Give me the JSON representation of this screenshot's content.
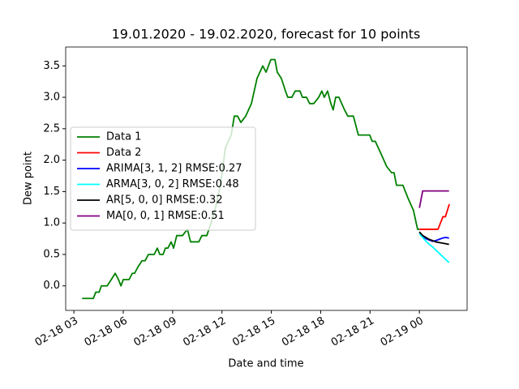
{
  "chart_data": {
    "type": "line",
    "title": "19.01.2020 - 19.02.2020, forecast for 10 points",
    "x_label": "Date and time",
    "y_label": "Dew point",
    "xlim": [
      2.5,
      26.9
    ],
    "ylim": [
      -0.39,
      3.8
    ],
    "xticks": [
      {
        "value": 3,
        "label": "02-18 03"
      },
      {
        "value": 6,
        "label": "02-18 06"
      },
      {
        "value": 9,
        "label": "02-18 09"
      },
      {
        "value": 12,
        "label": "02-18 12"
      },
      {
        "value": 15,
        "label": "02-18 15"
      },
      {
        "value": 18,
        "label": "02-18 18"
      },
      {
        "value": 21,
        "label": "02-18 21"
      },
      {
        "value": 24,
        "label": "02-19 00"
      }
    ],
    "yticks": [
      {
        "value": 0,
        "label": "0.0"
      },
      0.5,
      {
        "value": 1,
        "label": "1.0"
      },
      1.5,
      {
        "value": 2,
        "label": "2.0"
      },
      2.5,
      {
        "value": 3,
        "label": "3.0"
      },
      3.5
    ],
    "legend": "center left",
    "grid": false,
    "series": [
      {
        "name": "Data 1",
        "color": "#008000",
        "x": [
          3.5,
          3.84,
          4.18,
          4.33,
          4.53,
          4.67,
          5.02,
          5.27,
          5.51,
          5.71,
          5.86,
          6.0,
          6.35,
          6.55,
          6.69,
          6.89,
          7.14,
          7.33,
          7.53,
          7.88,
          8.07,
          8.22,
          8.42,
          8.56,
          8.71,
          8.91,
          9.06,
          9.25,
          9.6,
          9.9,
          10.09,
          10.59,
          10.78,
          11.08,
          11.33,
          11.57,
          11.82,
          12.01,
          12.21,
          12.56,
          12.75,
          12.95,
          13.15,
          13.44,
          13.79,
          14.13,
          14.48,
          14.68,
          14.97,
          15.22,
          15.36,
          15.61,
          15.86,
          16.0,
          16.25,
          16.45,
          16.74,
          16.89,
          17.14,
          17.33,
          17.58,
          17.88,
          18.07,
          18.22,
          18.42,
          18.62,
          18.76,
          18.91,
          19.11,
          19.45,
          19.65,
          19.99,
          20.29,
          20.98,
          21.13,
          21.32,
          21.67,
          22.01,
          22.31,
          22.46,
          22.61,
          23.0,
          23.3,
          23.64,
          23.89,
          24.0
        ],
        "values": [
          -0.2,
          -0.2,
          -0.2,
          -0.1,
          -0.1,
          0.0,
          0.0,
          0.1,
          0.2,
          0.1,
          0.0,
          0.1,
          0.1,
          0.2,
          0.2,
          0.3,
          0.4,
          0.4,
          0.5,
          0.5,
          0.6,
          0.5,
          0.5,
          0.6,
          0.6,
          0.7,
          0.6,
          0.8,
          0.8,
          0.9,
          0.7,
          0.7,
          0.8,
          0.8,
          1.0,
          1.2,
          1.5,
          1.8,
          2.2,
          2.4,
          2.7,
          2.7,
          2.6,
          2.7,
          2.9,
          3.3,
          3.5,
          3.4,
          3.6,
          3.6,
          3.4,
          3.3,
          3.1,
          3.0,
          3.0,
          3.1,
          3.1,
          3.0,
          3.0,
          2.9,
          2.9,
          3.0,
          3.1,
          3.0,
          3.1,
          2.9,
          2.8,
          3.0,
          3.0,
          2.8,
          2.7,
          2.7,
          2.4,
          2.4,
          2.3,
          2.3,
          2.1,
          1.9,
          1.8,
          1.8,
          1.6,
          1.6,
          1.4,
          1.2,
          0.9,
          0.9
        ]
      },
      {
        "name": "Data 2",
        "color": "#ff0000",
        "x": [
          24.0,
          25.13,
          25.43,
          25.58,
          25.82
        ],
        "values": [
          0.9,
          0.9,
          1.1,
          1.1,
          1.3
        ]
      },
      {
        "name": "ARIMA[3, 1, 2] RMSE:0.27",
        "color": "#0000ff",
        "x": [
          24.0,
          24.2,
          24.4,
          24.6,
          24.8,
          25.0,
          25.2,
          25.4,
          25.6,
          25.8
        ],
        "values": [
          0.85,
          0.8,
          0.75,
          0.73,
          0.71,
          0.72,
          0.74,
          0.76,
          0.77,
          0.76
        ]
      },
      {
        "name": "ARMA[3, 0, 2] RMSE:0.48",
        "color": "#00ffff",
        "x": [
          24.0,
          24.2,
          24.4,
          24.6,
          24.8,
          25.0,
          25.2,
          25.4,
          25.6,
          25.8
        ],
        "values": [
          0.83,
          0.77,
          0.71,
          0.66,
          0.62,
          0.57,
          0.52,
          0.47,
          0.42,
          0.37
        ]
      },
      {
        "name": "AR[5, 0, 0] RMSE:0.32",
        "color": "#000000",
        "x": [
          24.0,
          24.2,
          24.4,
          24.6,
          24.8,
          25.0,
          25.2,
          25.4,
          25.6,
          25.8
        ],
        "values": [
          0.86,
          0.8,
          0.77,
          0.74,
          0.72,
          0.7,
          0.69,
          0.68,
          0.67,
          0.66
        ]
      },
      {
        "name": "MA[0, 0, 1] RMSE:0.51",
        "color": "#800080",
        "x": [
          24.0,
          24.2,
          24.4,
          24.6,
          24.8,
          25.0,
          25.2,
          25.4,
          25.6,
          25.8
        ],
        "values": [
          1.24,
          1.51,
          1.51,
          1.51,
          1.51,
          1.51,
          1.51,
          1.51,
          1.51,
          1.51
        ]
      }
    ]
  }
}
